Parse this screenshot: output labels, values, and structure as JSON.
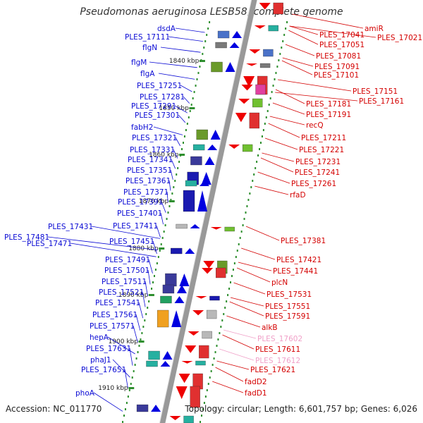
{
  "title": "Pseudomonas aeruginosa LESB58, complete genome",
  "footer": {
    "accession": "Accession: NC_011770",
    "topology": "Topology: circular; Length: 6,601,757 bp; Genes: 6,026"
  },
  "colors": {
    "forward_label": "#0a0ad4",
    "reverse_label": "#d40000",
    "pink_label": "#f0a0c8",
    "backbone": "#999999",
    "tick": "#2f8f2f"
  },
  "kbp_labels": [
    "1840 kbp",
    "1850 kbp",
    "1860 kbp",
    "1870 kbp",
    "1880 kbp",
    "1890 kbp",
    "1900 kbp",
    "1910 kbp"
  ],
  "left_labels": [
    "dsdA",
    "PLES_17111",
    "flgN",
    "flgM",
    "flgA",
    "PLES_17251",
    "PLES_17281",
    "PLES_17291",
    "PLES_17301",
    "fabH2",
    "PLES_17321",
    "PLES_17331",
    "PLES_17341",
    "PLES_17351",
    "PLES_17361",
    "PLES_17371",
    "PLES_17391",
    "PLES_17401",
    "PLES_17411",
    "PLES_17431",
    "PLES_17451",
    "PLES_17481",
    "PLES_17471",
    "PLES_17491",
    "PLES_17501",
    "PLES_17511",
    "PLES_17521",
    "PLES_17541",
    "PLES_17561",
    "PLES_17571",
    "hepA",
    "PLES_17631",
    "phaJ1",
    "PLES_17651",
    "phoA"
  ],
  "right_labels": [
    "amiR",
    "PLES_17021",
    "PLES_17041",
    "PLES_17051",
    "PLES_17081",
    "PLES_17091",
    "PLES_17101",
    "PLES_17151",
    "PLES_17161",
    "PLES_17181",
    "PLES_17191",
    "recQ",
    "PLES_17211",
    "PLES_17221",
    "PLES_17231",
    "PLES_17241",
    "PLES_17261",
    "rfaD",
    "PLES_17381",
    "PLES_17421",
    "PLES_17441",
    "plcN",
    "PLES_17531",
    "PLES_17551",
    "PLES_17591",
    "alkB",
    "PLES_17602",
    "PLES_17611",
    "PLES_17612",
    "PLES_17621",
    "fadD2",
    "fadD1"
  ]
}
